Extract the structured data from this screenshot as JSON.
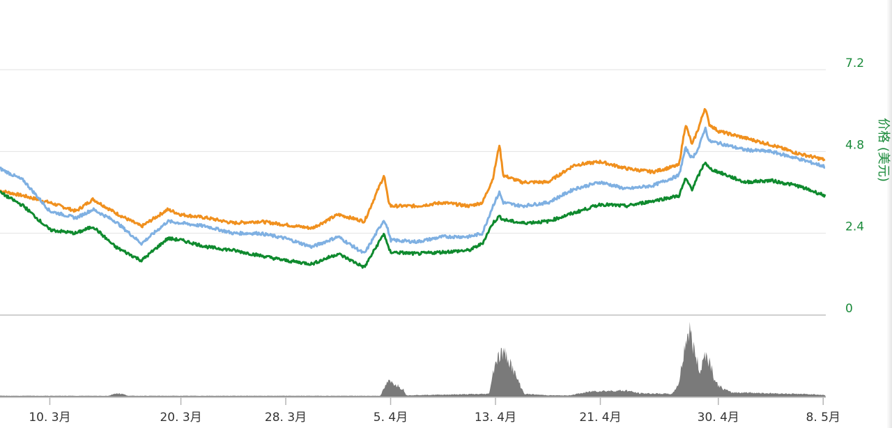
{
  "chart_data": {
    "type": "line",
    "title": "",
    "ylabel": "价格 (美元)",
    "ylim": [
      0,
      7.2
    ],
    "y_ticks": [
      "0",
      "2.4",
      "4.8",
      "7.2"
    ],
    "x_ticks": [
      "10. 3月",
      "20. 3月",
      "28. 3月",
      "5. 4月",
      "13. 4月",
      "21. 4月",
      "30. 4月",
      "8. 5月"
    ],
    "x_tick_days": [
      0,
      10,
      18,
      26,
      34,
      42,
      51,
      59
    ],
    "x_range_days": [
      -3.8,
      59.2
    ],
    "grid": true,
    "colors": {
      "orange": "#f0901e",
      "blue": "#7fb0e2",
      "green": "#0f8a2e",
      "volume": "#7a7a7a",
      "axis": "#1a8a3a"
    },
    "series": [
      {
        "color": "#f0901e",
        "days": [
          -3.8,
          -2,
          0,
          2,
          3.3,
          5,
          7,
          9,
          10,
          12,
          14,
          16,
          18,
          20,
          22,
          24,
          25.5,
          25.8,
          26,
          28,
          30,
          32,
          33,
          33.8,
          34.3,
          34.6,
          36,
          38,
          40,
          42,
          44,
          46,
          48,
          48.5,
          49,
          49.5,
          50,
          50.3,
          51,
          53,
          55,
          57,
          59.2
        ],
        "values": [
          3.65,
          3.5,
          3.3,
          3.05,
          3.4,
          3.0,
          2.6,
          3.1,
          2.95,
          2.85,
          2.7,
          2.75,
          2.65,
          2.55,
          2.95,
          2.75,
          4.1,
          3.4,
          3.2,
          3.2,
          3.3,
          3.2,
          3.3,
          4.0,
          5.0,
          4.1,
          3.9,
          3.9,
          4.4,
          4.5,
          4.3,
          4.2,
          4.4,
          5.6,
          5.0,
          5.5,
          6.1,
          5.6,
          5.4,
          5.2,
          5.0,
          4.75,
          4.55
        ]
      },
      {
        "color": "#7fb0e2",
        "days": [
          -3.8,
          -2,
          0,
          2,
          3.3,
          5,
          7,
          9,
          10,
          12,
          14,
          16,
          18,
          20,
          22,
          24,
          25.5,
          25.8,
          26,
          28,
          30,
          32,
          33,
          33.8,
          34.3,
          34.6,
          36,
          38,
          40,
          42,
          44,
          46,
          48,
          48.5,
          49,
          49.5,
          50,
          50.3,
          51,
          53,
          55,
          57,
          59.2
        ],
        "values": [
          4.3,
          3.95,
          3.05,
          2.85,
          3.1,
          2.75,
          2.1,
          2.75,
          2.7,
          2.6,
          2.4,
          2.4,
          2.25,
          2.0,
          2.3,
          1.8,
          2.8,
          2.5,
          2.2,
          2.15,
          2.3,
          2.3,
          2.4,
          3.2,
          3.6,
          3.3,
          3.2,
          3.3,
          3.7,
          3.9,
          3.7,
          3.8,
          4.1,
          4.9,
          4.6,
          4.9,
          5.5,
          5.1,
          5.05,
          4.85,
          4.8,
          4.6,
          4.35
        ]
      },
      {
        "color": "#0f8a2e",
        "days": [
          -3.8,
          -2,
          0,
          2,
          3.3,
          5,
          7,
          9,
          10,
          12,
          14,
          16,
          18,
          20,
          22,
          24,
          25.5,
          25.8,
          26,
          28,
          30,
          32,
          33,
          33.8,
          34.3,
          34.6,
          36,
          38,
          40,
          42,
          44,
          46,
          48,
          48.5,
          49,
          49.5,
          50,
          50.3,
          51,
          53,
          55,
          57,
          59.2
        ],
        "values": [
          3.6,
          3.2,
          2.5,
          2.4,
          2.6,
          2.0,
          1.6,
          2.25,
          2.2,
          2.0,
          1.9,
          1.75,
          1.6,
          1.5,
          1.8,
          1.4,
          2.4,
          2.0,
          1.85,
          1.8,
          1.85,
          1.9,
          2.1,
          2.7,
          2.9,
          2.8,
          2.7,
          2.75,
          3.0,
          3.25,
          3.2,
          3.35,
          3.5,
          4.0,
          3.7,
          4.1,
          4.5,
          4.3,
          4.2,
          3.9,
          3.95,
          3.8,
          3.5
        ]
      }
    ],
    "volume": {
      "color": "#7a7a7a",
      "days": [
        -3.8,
        4.5,
        5.0,
        5.5,
        6.0,
        25.2,
        25.8,
        26.4,
        27.0,
        27.2,
        33.5,
        34.0,
        34.5,
        35.0,
        35.5,
        36.2,
        38.0,
        39.5,
        41.5,
        44.0,
        45.0,
        47.5,
        48.0,
        48.5,
        48.8,
        49.2,
        49.6,
        50.0,
        50.4,
        50.8,
        51.3,
        52.0,
        53.0,
        55.0,
        57.0,
        58.5,
        59.2
      ],
      "values": [
        0.03,
        0.03,
        0.12,
        0.1,
        0.03,
        0.03,
        0.55,
        0.45,
        0.25,
        0.05,
        0.1,
        1.3,
        1.6,
        1.4,
        0.8,
        0.1,
        0.05,
        0.04,
        0.2,
        0.22,
        0.12,
        0.1,
        0.5,
        2.0,
        2.4,
        1.6,
        0.9,
        1.6,
        1.2,
        0.5,
        0.3,
        0.15,
        0.15,
        0.12,
        0.1,
        0.08,
        0.05
      ]
    }
  }
}
